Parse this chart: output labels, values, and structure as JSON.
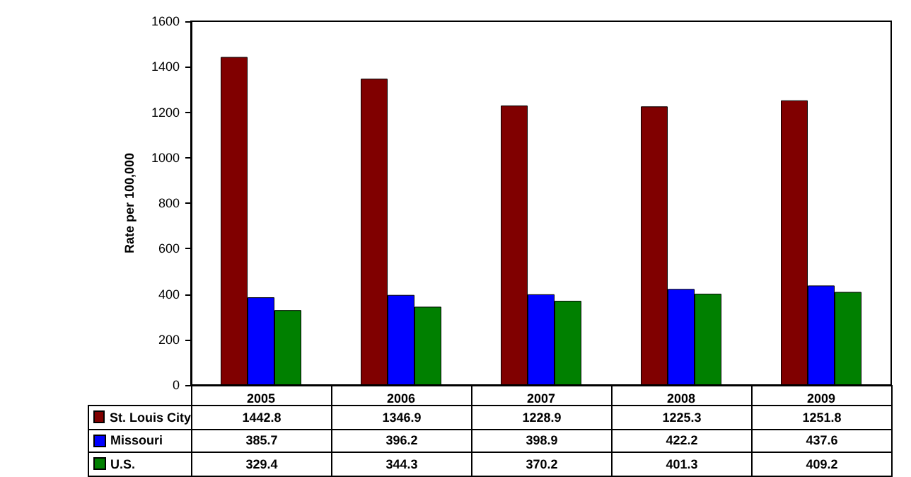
{
  "chart_data": {
    "type": "bar",
    "ylabel": "Rate per 100,000",
    "categories": [
      "2005",
      "2006",
      "2007",
      "2008",
      "2009"
    ],
    "series": [
      {
        "name": "St. Louis City",
        "color": "#800000",
        "values": [
          1442.8,
          1346.9,
          1228.9,
          1225.3,
          1251.8
        ]
      },
      {
        "name": "Missouri",
        "color": "#0000ff",
        "values": [
          385.7,
          396.2,
          398.9,
          422.2,
          437.6
        ]
      },
      {
        "name": "U.S.",
        "color": "#008000",
        "values": [
          329.4,
          344.3,
          370.2,
          401.3,
          409.2
        ]
      }
    ],
    "ylim": [
      0,
      1600
    ],
    "yticks": [
      0,
      200,
      400,
      600,
      800,
      1000,
      1200,
      1400,
      1600
    ],
    "data_labels": true,
    "grid": false,
    "legend": "bottom"
  }
}
